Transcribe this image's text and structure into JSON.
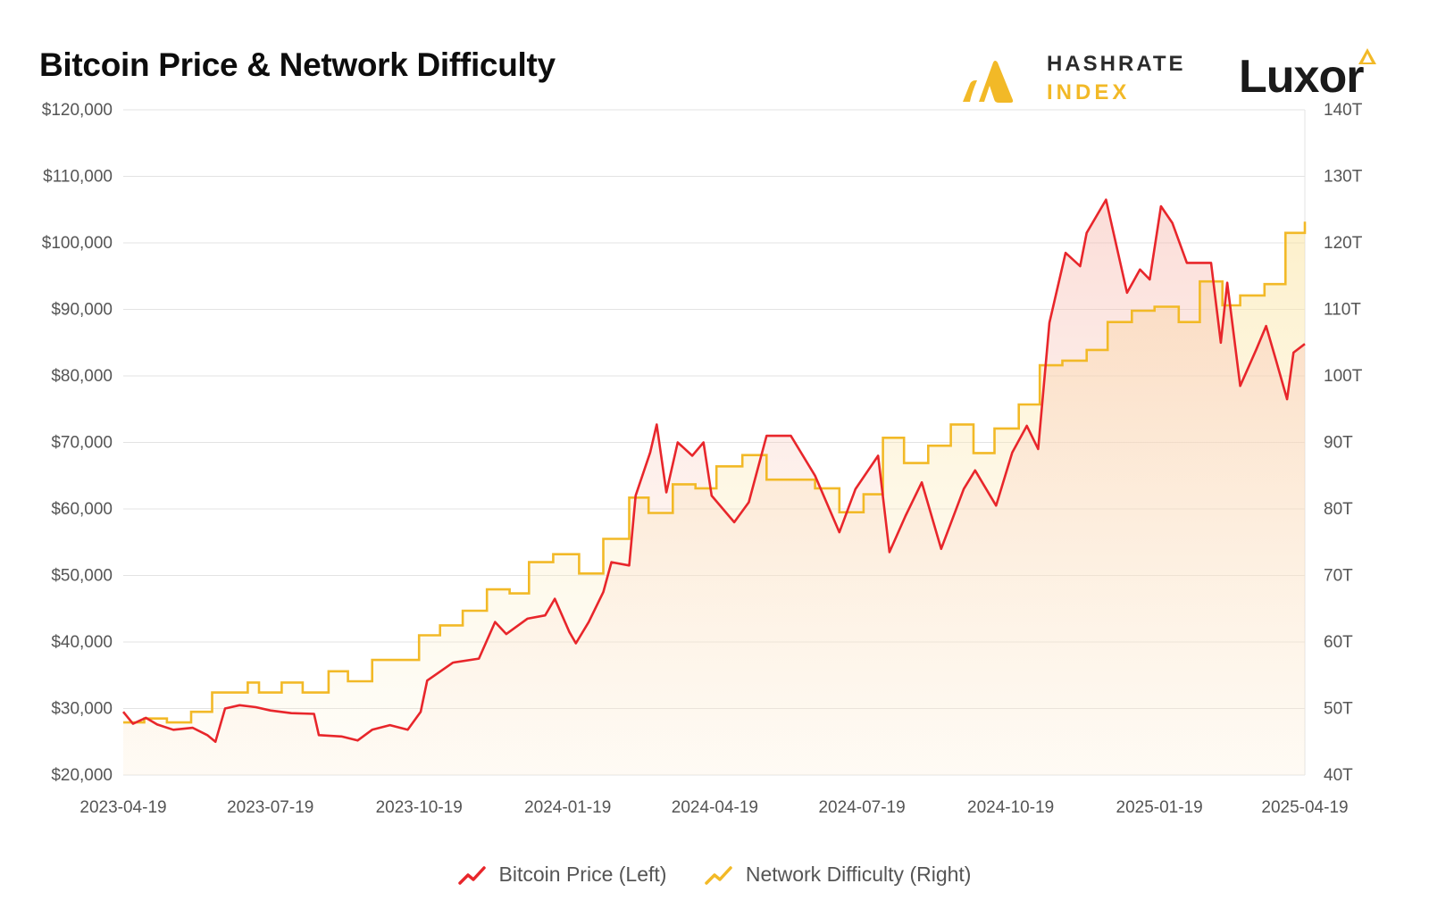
{
  "title": "Bitcoin Price & Network Difficulty",
  "logos": {
    "hashrate_line1": "HASHRATE",
    "hashrate_line2": "INDEX",
    "luxor": "Luxor"
  },
  "colors": {
    "price": "#e8262b",
    "difficulty": "#f2b927",
    "grid": "#e3e3e3",
    "tick_text": "#555555"
  },
  "chart_data": {
    "type": "line",
    "title": "Bitcoin Price & Network Difficulty",
    "x_axis": {
      "type": "date",
      "range": [
        "2023-04-19",
        "2025-04-19"
      ],
      "tick_labels": [
        "2023-04-19",
        "2023-07-19",
        "2023-10-19",
        "2024-01-19",
        "2024-04-19",
        "2024-07-19",
        "2024-10-19",
        "2025-01-19",
        "2025-04-19"
      ]
    },
    "y_left": {
      "range": [
        20000,
        120000
      ],
      "tick_values": [
        20000,
        30000,
        40000,
        50000,
        60000,
        70000,
        80000,
        90000,
        100000,
        110000,
        120000
      ],
      "tick_labels": [
        "$20,000",
        "$30,000",
        "$40,000",
        "$50,000",
        "$60,000",
        "$70,000",
        "$80,000",
        "$90,000",
        "$100,000",
        "$110,000",
        "$120,000"
      ]
    },
    "y_right": {
      "range": [
        40,
        140
      ],
      "tick_values": [
        40,
        50,
        60,
        70,
        80,
        90,
        100,
        110,
        120,
        130,
        140
      ],
      "tick_labels": [
        "40T",
        "50T",
        "60T",
        "70T",
        "80T",
        "90T",
        "100T",
        "110T",
        "120T",
        "130T",
        "140T"
      ]
    },
    "grid": true,
    "legend_position": "bottom-center",
    "series": [
      {
        "name": "Bitcoin Price (Left)",
        "axis": "left",
        "style": "line",
        "points": [
          [
            "2023-04-19",
            29500
          ],
          [
            "2023-04-25",
            27700
          ],
          [
            "2023-05-03",
            28600
          ],
          [
            "2023-05-10",
            27600
          ],
          [
            "2023-05-20",
            26800
          ],
          [
            "2023-06-01",
            27100
          ],
          [
            "2023-06-10",
            26000
          ],
          [
            "2023-06-15",
            25000
          ],
          [
            "2023-06-21",
            30000
          ],
          [
            "2023-06-30",
            30500
          ],
          [
            "2023-07-10",
            30200
          ],
          [
            "2023-07-19",
            29700
          ],
          [
            "2023-08-01",
            29300
          ],
          [
            "2023-08-15",
            29200
          ],
          [
            "2023-08-18",
            26000
          ],
          [
            "2023-09-01",
            25800
          ],
          [
            "2023-09-11",
            25200
          ],
          [
            "2023-09-20",
            26800
          ],
          [
            "2023-10-01",
            27500
          ],
          [
            "2023-10-12",
            26800
          ],
          [
            "2023-10-20",
            29500
          ],
          [
            "2023-10-24",
            34200
          ],
          [
            "2023-11-09",
            36900
          ],
          [
            "2023-11-25",
            37500
          ],
          [
            "2023-12-05",
            43000
          ],
          [
            "2023-12-12",
            41200
          ],
          [
            "2023-12-25",
            43500
          ],
          [
            "2024-01-05",
            44000
          ],
          [
            "2024-01-11",
            46500
          ],
          [
            "2024-01-20",
            41500
          ],
          [
            "2024-01-24",
            39800
          ],
          [
            "2024-02-01",
            43000
          ],
          [
            "2024-02-10",
            47500
          ],
          [
            "2024-02-15",
            52000
          ],
          [
            "2024-02-26",
            51500
          ],
          [
            "2024-03-01",
            62000
          ],
          [
            "2024-03-10",
            68500
          ],
          [
            "2024-03-14",
            72700
          ],
          [
            "2024-03-20",
            62500
          ],
          [
            "2024-03-27",
            70000
          ],
          [
            "2024-04-05",
            68000
          ],
          [
            "2024-04-12",
            70000
          ],
          [
            "2024-04-17",
            62000
          ],
          [
            "2024-05-01",
            58000
          ],
          [
            "2024-05-10",
            61000
          ],
          [
            "2024-05-21",
            71000
          ],
          [
            "2024-06-05",
            71000
          ],
          [
            "2024-06-20",
            65000
          ],
          [
            "2024-07-05",
            56500
          ],
          [
            "2024-07-15",
            63000
          ],
          [
            "2024-07-29",
            68000
          ],
          [
            "2024-08-05",
            53500
          ],
          [
            "2024-08-15",
            59000
          ],
          [
            "2024-08-25",
            64000
          ],
          [
            "2024-09-06",
            54000
          ],
          [
            "2024-09-20",
            63000
          ],
          [
            "2024-09-27",
            65800
          ],
          [
            "2024-10-10",
            60500
          ],
          [
            "2024-10-20",
            68500
          ],
          [
            "2024-10-29",
            72500
          ],
          [
            "2024-11-05",
            69000
          ],
          [
            "2024-11-12",
            88000
          ],
          [
            "2024-11-22",
            98500
          ],
          [
            "2024-12-01",
            96500
          ],
          [
            "2024-12-05",
            101500
          ],
          [
            "2024-12-17",
            106500
          ],
          [
            "2024-12-30",
            92500
          ],
          [
            "2025-01-07",
            96000
          ],
          [
            "2025-01-13",
            94500
          ],
          [
            "2025-01-20",
            105500
          ],
          [
            "2025-01-27",
            103000
          ],
          [
            "2025-02-05",
            97000
          ],
          [
            "2025-02-20",
            97000
          ],
          [
            "2025-02-26",
            85000
          ],
          [
            "2025-03-02",
            94000
          ],
          [
            "2025-03-10",
            78500
          ],
          [
            "2025-03-20",
            84000
          ],
          [
            "2025-03-26",
            87500
          ],
          [
            "2025-04-01",
            82500
          ],
          [
            "2025-04-08",
            76500
          ],
          [
            "2025-04-12",
            83500
          ],
          [
            "2025-04-19",
            84800
          ]
        ]
      },
      {
        "name": "Network Difficulty (Right)",
        "axis": "right",
        "style": "step",
        "unit": "T",
        "points": [
          [
            "2023-04-19",
            47.9
          ],
          [
            "2023-05-02",
            48.5
          ],
          [
            "2023-05-16",
            47.9
          ],
          [
            "2023-05-31",
            49.5
          ],
          [
            "2023-06-13",
            52.4
          ],
          [
            "2023-06-27",
            52.4
          ],
          [
            "2023-07-05",
            53.9
          ],
          [
            "2023-07-12",
            52.4
          ],
          [
            "2023-07-26",
            53.9
          ],
          [
            "2023-08-08",
            52.4
          ],
          [
            "2023-08-24",
            55.6
          ],
          [
            "2023-09-05",
            54.1
          ],
          [
            "2023-09-20",
            57.3
          ],
          [
            "2023-10-05",
            57.3
          ],
          [
            "2023-10-19",
            61.0
          ],
          [
            "2023-11-01",
            62.5
          ],
          [
            "2023-11-15",
            64.7
          ],
          [
            "2023-11-30",
            67.9
          ],
          [
            "2023-12-14",
            67.3
          ],
          [
            "2023-12-26",
            72.0
          ],
          [
            "2024-01-10",
            73.2
          ],
          [
            "2024-01-26",
            70.3
          ],
          [
            "2024-02-10",
            75.5
          ],
          [
            "2024-02-26",
            81.7
          ],
          [
            "2024-03-09",
            79.4
          ],
          [
            "2024-03-24",
            83.7
          ],
          [
            "2024-04-07",
            83.1
          ],
          [
            "2024-04-20",
            86.4
          ],
          [
            "2024-05-06",
            88.1
          ],
          [
            "2024-05-21",
            84.4
          ],
          [
            "2024-06-05",
            84.4
          ],
          [
            "2024-06-20",
            83.1
          ],
          [
            "2024-07-05",
            79.5
          ],
          [
            "2024-07-20",
            82.2
          ],
          [
            "2024-08-01",
            90.7
          ],
          [
            "2024-08-14",
            86.9
          ],
          [
            "2024-08-29",
            89.5
          ],
          [
            "2024-09-12",
            92.7
          ],
          [
            "2024-09-26",
            88.4
          ],
          [
            "2024-10-09",
            92.1
          ],
          [
            "2024-10-24",
            95.7
          ],
          [
            "2024-11-06",
            101.6
          ],
          [
            "2024-11-20",
            102.3
          ],
          [
            "2024-12-05",
            103.9
          ],
          [
            "2024-12-18",
            108.1
          ],
          [
            "2025-01-02",
            109.8
          ],
          [
            "2025-01-16",
            110.4
          ],
          [
            "2025-01-31",
            108.1
          ],
          [
            "2025-02-13",
            114.2
          ],
          [
            "2025-02-27",
            110.6
          ],
          [
            "2025-03-10",
            112.1
          ],
          [
            "2025-03-25",
            113.8
          ],
          [
            "2025-04-07",
            121.5
          ],
          [
            "2025-04-19",
            123.2
          ]
        ]
      }
    ]
  },
  "legend": {
    "price": "Bitcoin Price (Left)",
    "difficulty": "Network Difficulty (Right)"
  }
}
